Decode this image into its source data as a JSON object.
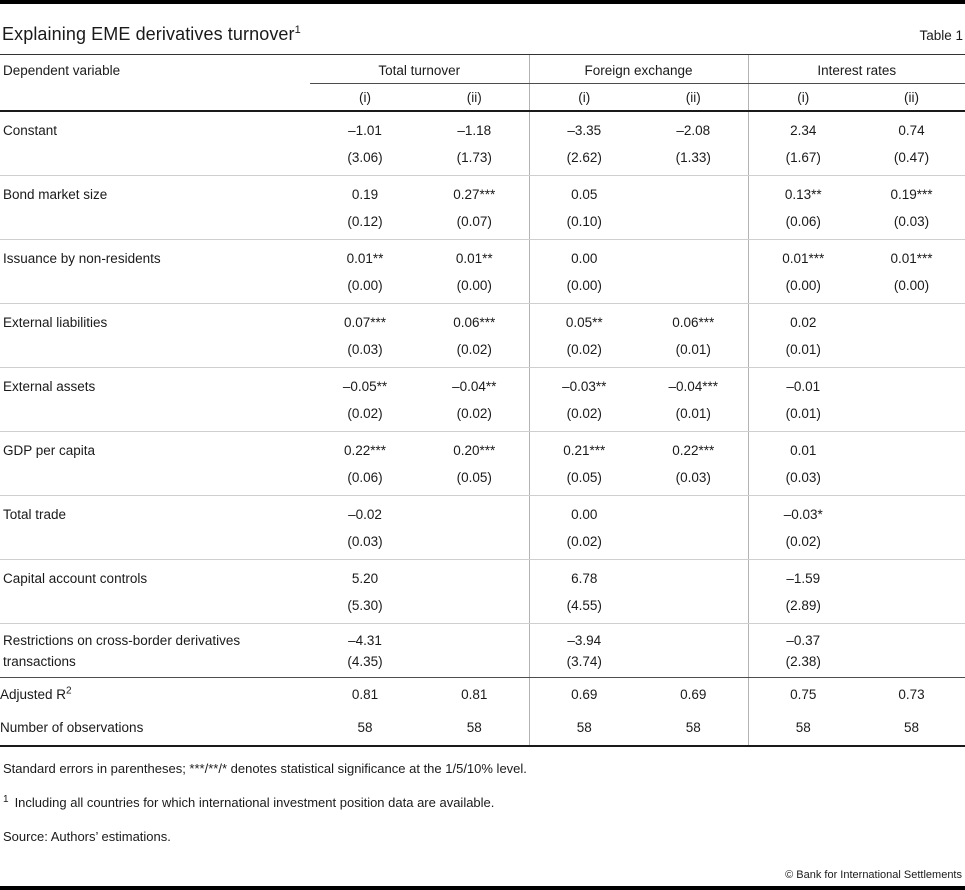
{
  "page": {
    "title": "Explaining EME derivatives turnover",
    "title_superscript": "1",
    "table_label": "Table 1"
  },
  "table": {
    "header": {
      "dependent_variable": "Dependent variable",
      "groups": [
        {
          "label": "Total turnover",
          "subcols": [
            "(i)",
            "(ii)"
          ]
        },
        {
          "label": "Foreign exchange",
          "subcols": [
            "(i)",
            "(ii)"
          ]
        },
        {
          "label": "Interest rates",
          "subcols": [
            "(i)",
            "(ii)"
          ]
        }
      ]
    },
    "rows": [
      {
        "label": "Constant",
        "cells": [
          {
            "coef": "–1.01",
            "se": "(3.06)"
          },
          {
            "coef": "–1.18",
            "se": "(1.73)"
          },
          {
            "coef": "–3.35",
            "se": "(2.62)"
          },
          {
            "coef": "–2.08",
            "se": "(1.33)"
          },
          {
            "coef": "2.34",
            "se": "(1.67)"
          },
          {
            "coef": "0.74",
            "se": "(0.47)"
          }
        ]
      },
      {
        "label": "Bond market size",
        "cells": [
          {
            "coef": "0.19",
            "se": "(0.12)"
          },
          {
            "coef": "0.27***",
            "se": "(0.07)"
          },
          {
            "coef": "0.05",
            "se": "(0.10)"
          },
          {
            "coef": "",
            "se": ""
          },
          {
            "coef": "0.13**",
            "se": "(0.06)"
          },
          {
            "coef": "0.19***",
            "se": "(0.03)"
          }
        ]
      },
      {
        "label": "Issuance by non-residents",
        "cells": [
          {
            "coef": "0.01**",
            "se": "(0.00)"
          },
          {
            "coef": "0.01**",
            "se": "(0.00)"
          },
          {
            "coef": "0.00",
            "se": "(0.00)"
          },
          {
            "coef": "",
            "se": ""
          },
          {
            "coef": "0.01***",
            "se": "(0.00)"
          },
          {
            "coef": "0.01***",
            "se": "(0.00)"
          }
        ]
      },
      {
        "label": "External liabilities",
        "cells": [
          {
            "coef": "0.07***",
            "se": "(0.03)"
          },
          {
            "coef": "0.06***",
            "se": "(0.02)"
          },
          {
            "coef": "0.05**",
            "se": "(0.02)"
          },
          {
            "coef": "0.06***",
            "se": "(0.01)"
          },
          {
            "coef": "0.02",
            "se": "(0.01)"
          },
          {
            "coef": "",
            "se": ""
          }
        ]
      },
      {
        "label": "External assets",
        "cells": [
          {
            "coef": "–0.05**",
            "se": "(0.02)"
          },
          {
            "coef": "–0.04**",
            "se": "(0.02)"
          },
          {
            "coef": "–0.03**",
            "se": "(0.02)"
          },
          {
            "coef": "–0.04***",
            "se": "(0.01)"
          },
          {
            "coef": "–0.01",
            "se": "(0.01)"
          },
          {
            "coef": "",
            "se": ""
          }
        ]
      },
      {
        "label": "GDP per capita",
        "cells": [
          {
            "coef": "0.22***",
            "se": "(0.06)"
          },
          {
            "coef": "0.20***",
            "se": "(0.05)"
          },
          {
            "coef": "0.21***",
            "se": "(0.05)"
          },
          {
            "coef": "0.22***",
            "se": "(0.03)"
          },
          {
            "coef": "0.01",
            "se": "(0.03)"
          },
          {
            "coef": "",
            "se": ""
          }
        ]
      },
      {
        "label": "Total trade",
        "cells": [
          {
            "coef": "–0.02",
            "se": "(0.03)"
          },
          {
            "coef": "",
            "se": ""
          },
          {
            "coef": "0.00",
            "se": "(0.02)"
          },
          {
            "coef": "",
            "se": ""
          },
          {
            "coef": "–0.03*",
            "se": "(0.02)"
          },
          {
            "coef": "",
            "se": ""
          }
        ]
      },
      {
        "label": "Capital account controls",
        "cells": [
          {
            "coef": "5.20",
            "se": "(5.30)"
          },
          {
            "coef": "",
            "se": ""
          },
          {
            "coef": "6.78",
            "se": "(4.55)"
          },
          {
            "coef": "",
            "se": ""
          },
          {
            "coef": "–1.59",
            "se": "(2.89)"
          },
          {
            "coef": "",
            "se": ""
          }
        ]
      },
      {
        "label": "Restrictions on cross-border derivatives transactions",
        "cells": [
          {
            "coef": "–4.31",
            "se": "(4.35)"
          },
          {
            "coef": "",
            "se": ""
          },
          {
            "coef": "–3.94",
            "se": "(3.74)"
          },
          {
            "coef": "",
            "se": ""
          },
          {
            "coef": "–0.37",
            "se": "(2.38)"
          },
          {
            "coef": "",
            "se": ""
          }
        ]
      }
    ],
    "summary_rows": [
      {
        "label": "Adjusted R",
        "label_superscript": "2",
        "values": [
          "0.81",
          "0.81",
          "0.69",
          "0.69",
          "0.75",
          "0.73"
        ]
      },
      {
        "label": "Number of observations",
        "label_superscript": "",
        "values": [
          "58",
          "58",
          "58",
          "58",
          "58",
          "58"
        ]
      }
    ]
  },
  "notes": {
    "significance": "Standard errors in parentheses; ***/**/* denotes statistical significance at the 1/5/10% level.",
    "footnote_marker": "1",
    "footnote": "Including all countries for which international investment position data are available.",
    "source": "Source: Authors’ estimations."
  },
  "footer": {
    "copyright": "© Bank for International Settlements"
  }
}
